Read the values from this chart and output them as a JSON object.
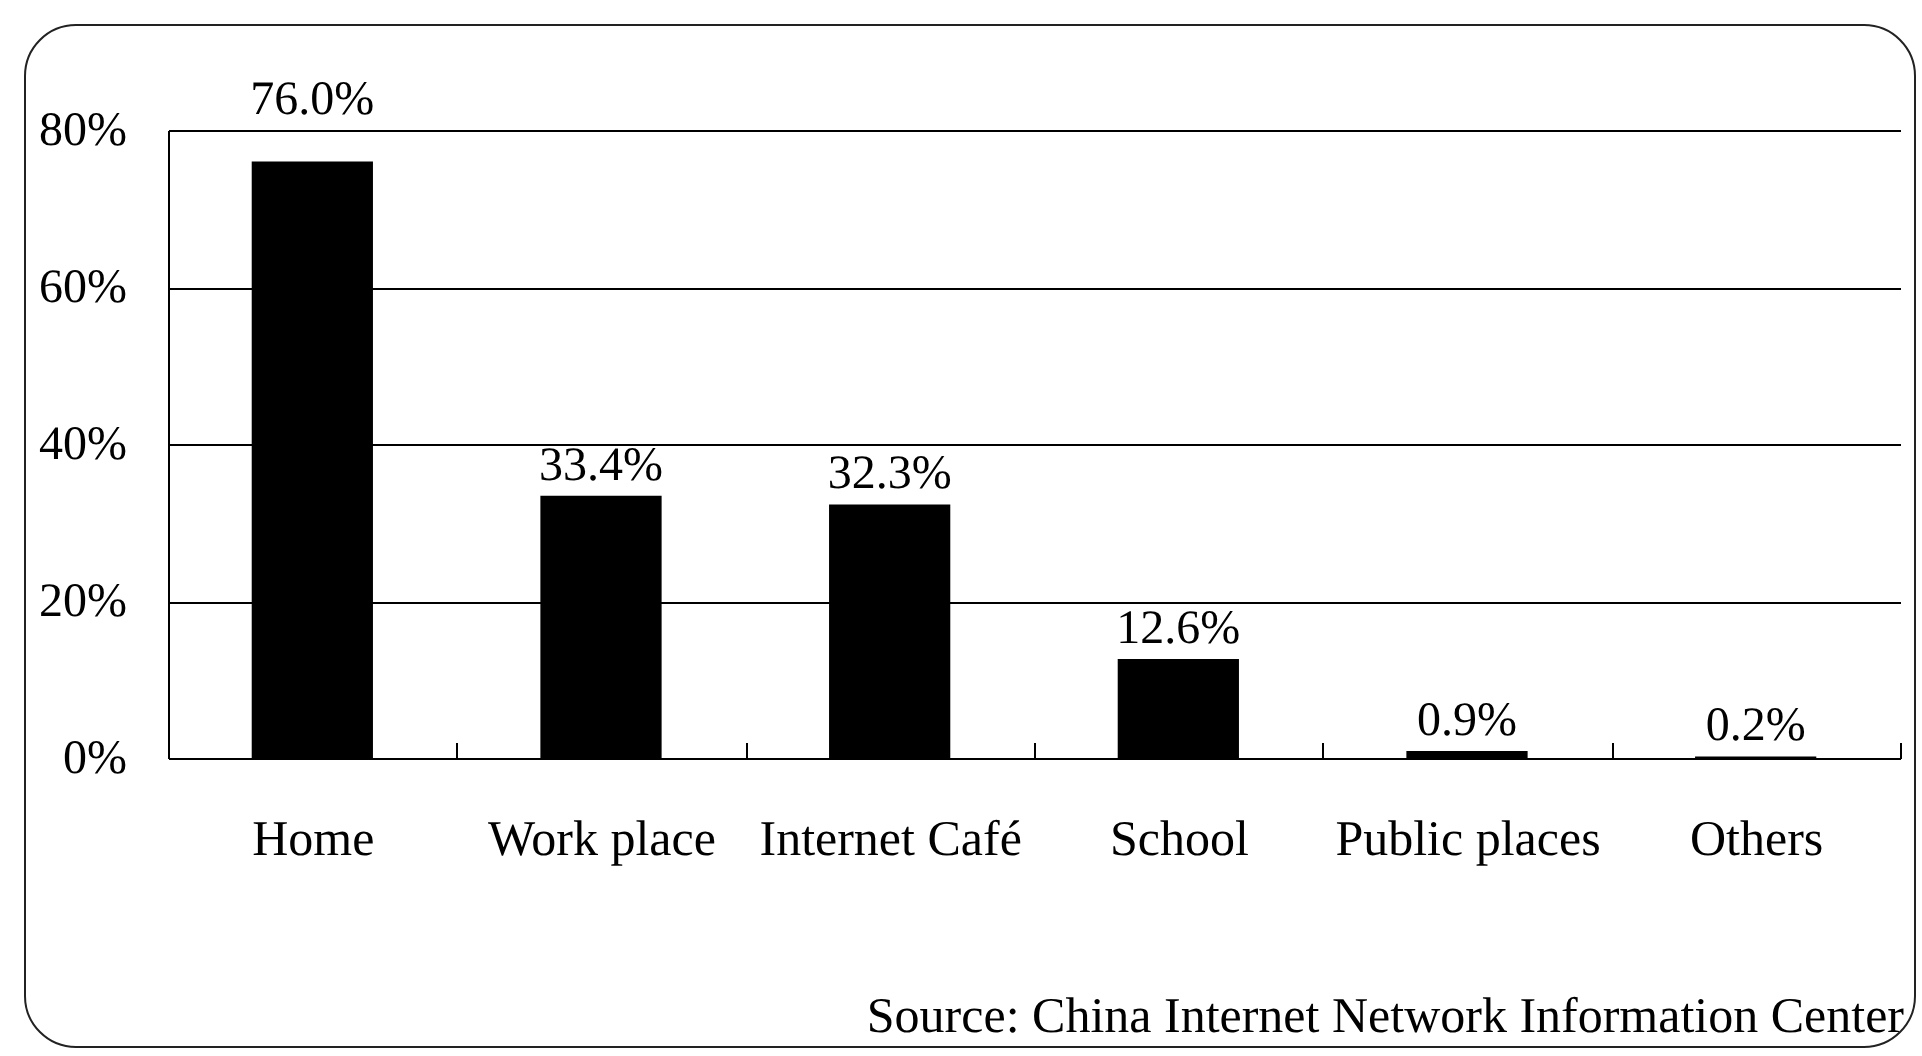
{
  "chart_data": {
    "type": "bar",
    "categories": [
      "Home",
      "Work place",
      "Internet Café",
      "School",
      "Public places",
      "Others"
    ],
    "values": [
      76.0,
      33.4,
      32.3,
      12.6,
      0.9,
      0.2
    ],
    "value_labels": [
      "76.0%",
      "33.4%",
      "32.3%",
      "12.6%",
      "0.9%",
      "0.2%"
    ],
    "color": "#000000",
    "ylim": [
      0,
      80
    ],
    "yticks": [
      {
        "value": 0,
        "label": "0%"
      },
      {
        "value": 20,
        "label": "20%"
      },
      {
        "value": 40,
        "label": "40%"
      },
      {
        "value": 60,
        "label": "60%"
      },
      {
        "value": 80,
        "label": "80%"
      }
    ],
    "grid": "y",
    "annotations": [
      "Source: China Internet Network Information Center"
    ]
  }
}
